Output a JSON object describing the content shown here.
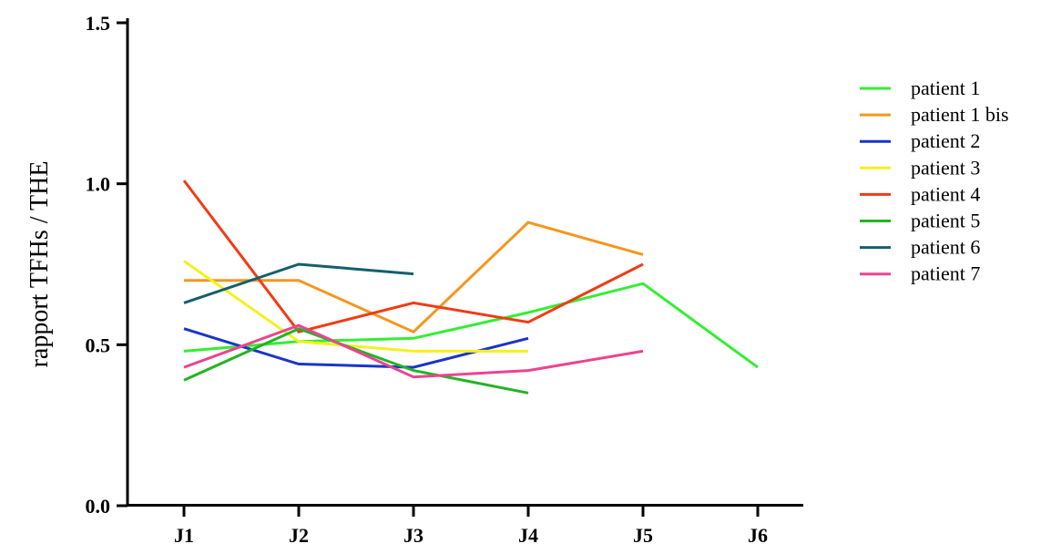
{
  "chart_data": {
    "type": "line",
    "title": "",
    "xlabel": "",
    "ylabel": "rapport TFHs / THE",
    "categories": [
      "J1",
      "J2",
      "J3",
      "J4",
      "J5",
      "J6"
    ],
    "yticks": [
      "0.0",
      "0.5",
      "1.0",
      "1.5"
    ],
    "ylim": [
      0,
      1.5
    ],
    "grid": false,
    "legend_position": "right",
    "series": [
      {
        "name": "patient 1",
        "color": "#33ee33",
        "values": [
          0.48,
          0.51,
          0.52,
          0.6,
          0.69,
          0.43
        ]
      },
      {
        "name": "patient 1 bis",
        "color": "#f5961e",
        "values": [
          0.7,
          0.7,
          0.54,
          0.88,
          0.78,
          null
        ]
      },
      {
        "name": "patient 2",
        "color": "#1a35c8",
        "values": [
          0.55,
          0.44,
          0.43,
          0.52,
          null,
          null
        ]
      },
      {
        "name": "patient 3",
        "color": "#f5f01e",
        "values": [
          0.76,
          0.51,
          0.48,
          0.48,
          null,
          null
        ]
      },
      {
        "name": "patient 4",
        "color": "#f03c14",
        "values": [
          1.01,
          0.54,
          0.63,
          0.57,
          0.75,
          null
        ]
      },
      {
        "name": "patient 5",
        "color": "#22b422",
        "values": [
          0.39,
          0.55,
          0.42,
          0.35,
          null,
          null
        ]
      },
      {
        "name": "patient 6",
        "color": "#12606e",
        "values": [
          0.63,
          0.75,
          0.72,
          null,
          null,
          null
        ]
      },
      {
        "name": "patient 7",
        "color": "#ec4391",
        "values": [
          0.43,
          0.56,
          0.4,
          0.42,
          0.48,
          null
        ]
      }
    ]
  }
}
